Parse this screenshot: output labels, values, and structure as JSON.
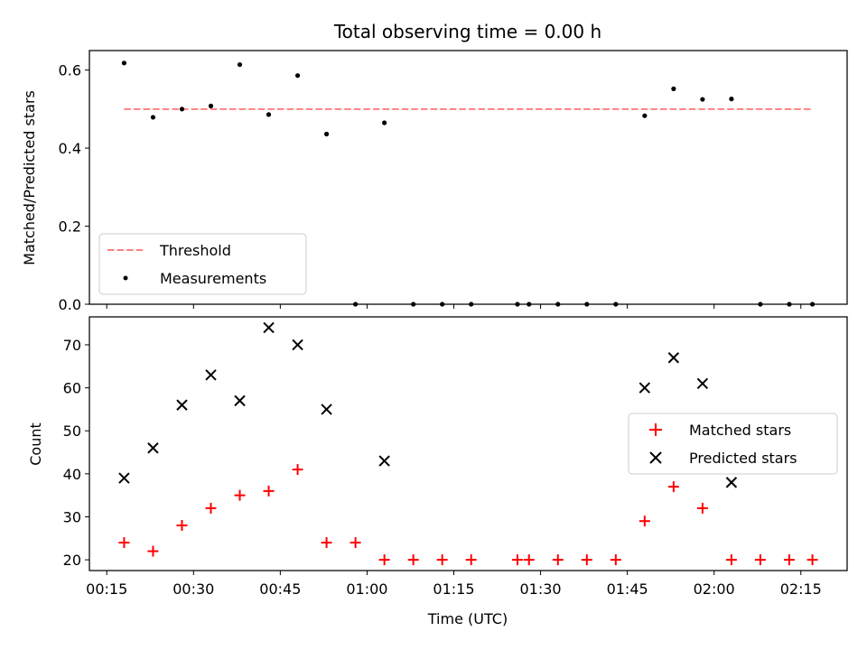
{
  "chart_data": [
    {
      "type": "scatter",
      "title": "Total observing time = 0.00 h",
      "ylabel": "Matched/Predicted stars",
      "xlabel": "",
      "xlim": [
        "00:12",
        "02:23"
      ],
      "ylim": [
        0,
        0.65
      ],
      "yticks": [
        0.0,
        0.2,
        0.4,
        0.6
      ],
      "ytick_labels": [
        "0.0",
        "0.2",
        "0.4",
        "0.6"
      ],
      "grid": false,
      "legend_position": "lower-left",
      "threshold": {
        "name": "Threshold",
        "value": 0.5,
        "x_range": [
          "00:18",
          "02:17"
        ],
        "color": "#ff7f7f",
        "style": "dashed"
      },
      "series": [
        {
          "name": "Measurements",
          "color": "#000000",
          "marker": "dot",
          "x": [
            "00:18",
            "00:23",
            "00:28",
            "00:33",
            "00:38",
            "00:43",
            "00:48",
            "00:53",
            "00:58",
            "01:03",
            "01:08",
            "01:13",
            "01:18",
            "01:26",
            "01:28",
            "01:33",
            "01:38",
            "01:43",
            "01:48",
            "01:53",
            "01:58",
            "02:03",
            "02:08",
            "02:13",
            "02:17"
          ],
          "y": [
            0.618,
            0.479,
            0.5,
            0.508,
            0.614,
            0.486,
            0.586,
            0.436,
            0,
            0.465,
            0,
            0,
            0,
            0,
            0,
            0,
            0,
            0,
            0.483,
            0.552,
            0.525,
            0.526,
            0,
            0,
            0
          ]
        }
      ]
    },
    {
      "type": "scatter",
      "title": "",
      "ylabel": "Count",
      "xlabel": "Time (UTC)",
      "xlim": [
        "00:12",
        "02:23"
      ],
      "ylim": [
        17.5,
        76.5
      ],
      "yticks": [
        20,
        30,
        40,
        50,
        60,
        70
      ],
      "ytick_labels": [
        "20",
        "30",
        "40",
        "50",
        "60",
        "70"
      ],
      "xtick_labels": [
        "00:15",
        "00:30",
        "00:45",
        "01:00",
        "01:15",
        "01:30",
        "01:45",
        "02:00",
        "02:15"
      ],
      "grid": false,
      "legend_position": "center-right",
      "series": [
        {
          "name": "Matched stars",
          "color": "#ff0000",
          "marker": "plus",
          "x": [
            "00:18",
            "00:23",
            "00:28",
            "00:33",
            "00:38",
            "00:43",
            "00:48",
            "00:53",
            "00:58",
            "01:03",
            "01:08",
            "01:13",
            "01:18",
            "01:26",
            "01:28",
            "01:33",
            "01:38",
            "01:43",
            "01:48",
            "01:53",
            "01:58",
            "02:03",
            "02:08",
            "02:13",
            "02:17"
          ],
          "y": [
            24,
            22,
            28,
            32,
            35,
            36,
            41,
            24,
            24,
            20,
            20,
            20,
            20,
            20,
            20,
            20,
            20,
            20,
            29,
            37,
            32,
            20,
            20,
            20,
            20
          ]
        },
        {
          "name": "Predicted stars",
          "color": "#000000",
          "marker": "x",
          "x": [
            "00:18",
            "00:23",
            "00:28",
            "00:33",
            "00:38",
            "00:43",
            "00:48",
            "00:53",
            "01:03",
            "01:48",
            "01:53",
            "01:58",
            "02:03"
          ],
          "y": [
            39,
            46,
            56,
            63,
            57,
            74,
            70,
            55,
            43,
            60,
            67,
            61,
            38
          ]
        }
      ]
    }
  ]
}
